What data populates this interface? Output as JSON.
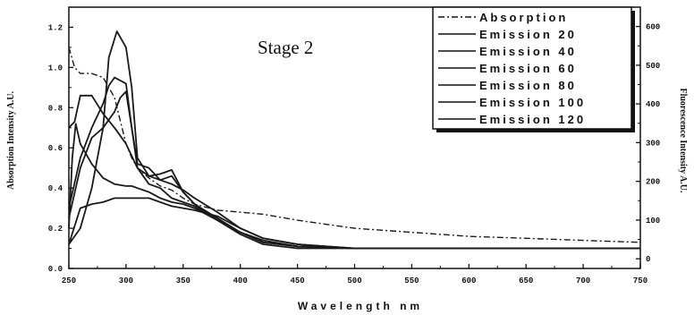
{
  "chart_data": {
    "type": "line",
    "annotation": "Stage 2",
    "xlabel": "Wavelength nm",
    "ylabel_left": "Absorption Intensity A.U.",
    "ylabel_right": "Fluorescence Intensity A.U.",
    "xlim": [
      250,
      750
    ],
    "ylim_left": [
      0.0,
      1.3
    ],
    "ylim_right": [
      -25,
      650
    ],
    "x_ticks": [
      "250",
      "300",
      "350",
      "400",
      "450",
      "500",
      "550",
      "600",
      "650",
      "700",
      "750"
    ],
    "y_ticks_left": [
      "0.0",
      "0.2",
      "0.4",
      "0.6",
      "0.8",
      "1.0",
      "1.2"
    ],
    "y_ticks_right": [
      "0",
      "100",
      "200",
      "300",
      "400",
      "500",
      "600"
    ],
    "legend_position": "top-right",
    "series": [
      {
        "name": "Absorption",
        "axis": "left",
        "style": "dash-dot",
        "x": [
          250,
          255,
          260,
          270,
          280,
          290,
          300,
          305,
          310,
          320,
          330,
          340,
          350,
          360,
          380,
          400,
          420,
          450,
          500,
          550,
          600,
          650,
          700,
          750
        ],
        "y": [
          1.1,
          1.0,
          0.97,
          0.97,
          0.95,
          0.85,
          0.62,
          0.55,
          0.5,
          0.45,
          0.41,
          0.39,
          0.35,
          0.32,
          0.29,
          0.28,
          0.27,
          0.24,
          0.2,
          0.18,
          0.16,
          0.15,
          0.14,
          0.13
        ]
      },
      {
        "name": "Emission 20",
        "axis": "left",
        "x": [
          250,
          255,
          260,
          270,
          280,
          290,
          300,
          310,
          320,
          330,
          340,
          350,
          360,
          380,
          400,
          420,
          450,
          500,
          550,
          600,
          650,
          700,
          750
        ],
        "y": [
          0.7,
          0.73,
          0.86,
          0.86,
          0.77,
          0.7,
          0.62,
          0.5,
          0.46,
          0.44,
          0.42,
          0.39,
          0.35,
          0.28,
          0.2,
          0.15,
          0.12,
          0.1,
          0.1,
          0.1,
          0.1,
          0.1,
          0.1
        ]
      },
      {
        "name": "Emission 40",
        "axis": "left",
        "x": [
          250,
          253,
          256,
          260,
          270,
          280,
          290,
          300,
          305,
          310,
          320,
          330,
          340,
          350,
          360,
          380,
          400,
          420,
          450,
          500,
          550,
          600,
          650,
          700,
          750
        ],
        "y": [
          0.2,
          0.55,
          0.72,
          0.62,
          0.52,
          0.45,
          0.42,
          0.41,
          0.41,
          0.4,
          0.38,
          0.35,
          0.33,
          0.32,
          0.3,
          0.24,
          0.18,
          0.14,
          0.11,
          0.1,
          0.1,
          0.1,
          0.1,
          0.1,
          0.1
        ]
      },
      {
        "name": "Emission 60",
        "axis": "left",
        "x": [
          250,
          260,
          270,
          280,
          285,
          292,
          300,
          305,
          310,
          320,
          330,
          340,
          350,
          360,
          380,
          400,
          420,
          450,
          500,
          550,
          600,
          650,
          700,
          750
        ],
        "y": [
          0.12,
          0.2,
          0.4,
          0.7,
          1.05,
          1.18,
          1.1,
          0.9,
          0.55,
          0.46,
          0.47,
          0.49,
          0.38,
          0.32,
          0.24,
          0.17,
          0.12,
          0.1,
          0.1,
          0.1,
          0.1,
          0.1,
          0.1,
          0.1
        ]
      },
      {
        "name": "Emission 80",
        "axis": "left",
        "x": [
          250,
          260,
          270,
          280,
          285,
          290,
          300,
          305,
          310,
          320,
          330,
          340,
          350,
          360,
          380,
          400,
          420,
          450,
          500,
          550,
          600,
          650,
          700,
          750
        ],
        "y": [
          0.3,
          0.55,
          0.7,
          0.82,
          0.91,
          0.95,
          0.92,
          0.7,
          0.52,
          0.5,
          0.44,
          0.46,
          0.38,
          0.32,
          0.25,
          0.18,
          0.13,
          0.11,
          0.1,
          0.1,
          0.1,
          0.1,
          0.1,
          0.1
        ]
      },
      {
        "name": "Emission 100",
        "axis": "left",
        "x": [
          250,
          260,
          270,
          280,
          290,
          295,
          300,
          305,
          310,
          320,
          330,
          340,
          350,
          360,
          380,
          400,
          420,
          450,
          500,
          550,
          600,
          650,
          700,
          750
        ],
        "y": [
          0.25,
          0.5,
          0.65,
          0.7,
          0.78,
          0.85,
          0.88,
          0.7,
          0.5,
          0.42,
          0.4,
          0.35,
          0.33,
          0.31,
          0.24,
          0.18,
          0.13,
          0.11,
          0.1,
          0.1,
          0.1,
          0.1,
          0.1,
          0.1
        ]
      },
      {
        "name": "Emission 120",
        "axis": "left",
        "x": [
          250,
          260,
          270,
          280,
          290,
          300,
          310,
          320,
          330,
          340,
          350,
          360,
          380,
          400,
          420,
          450,
          500,
          550,
          600,
          650,
          700,
          750
        ],
        "y": [
          0.12,
          0.3,
          0.32,
          0.33,
          0.35,
          0.35,
          0.35,
          0.35,
          0.33,
          0.31,
          0.3,
          0.29,
          0.26,
          0.2,
          0.15,
          0.12,
          0.1,
          0.1,
          0.1,
          0.1,
          0.1,
          0.1
        ]
      }
    ]
  }
}
